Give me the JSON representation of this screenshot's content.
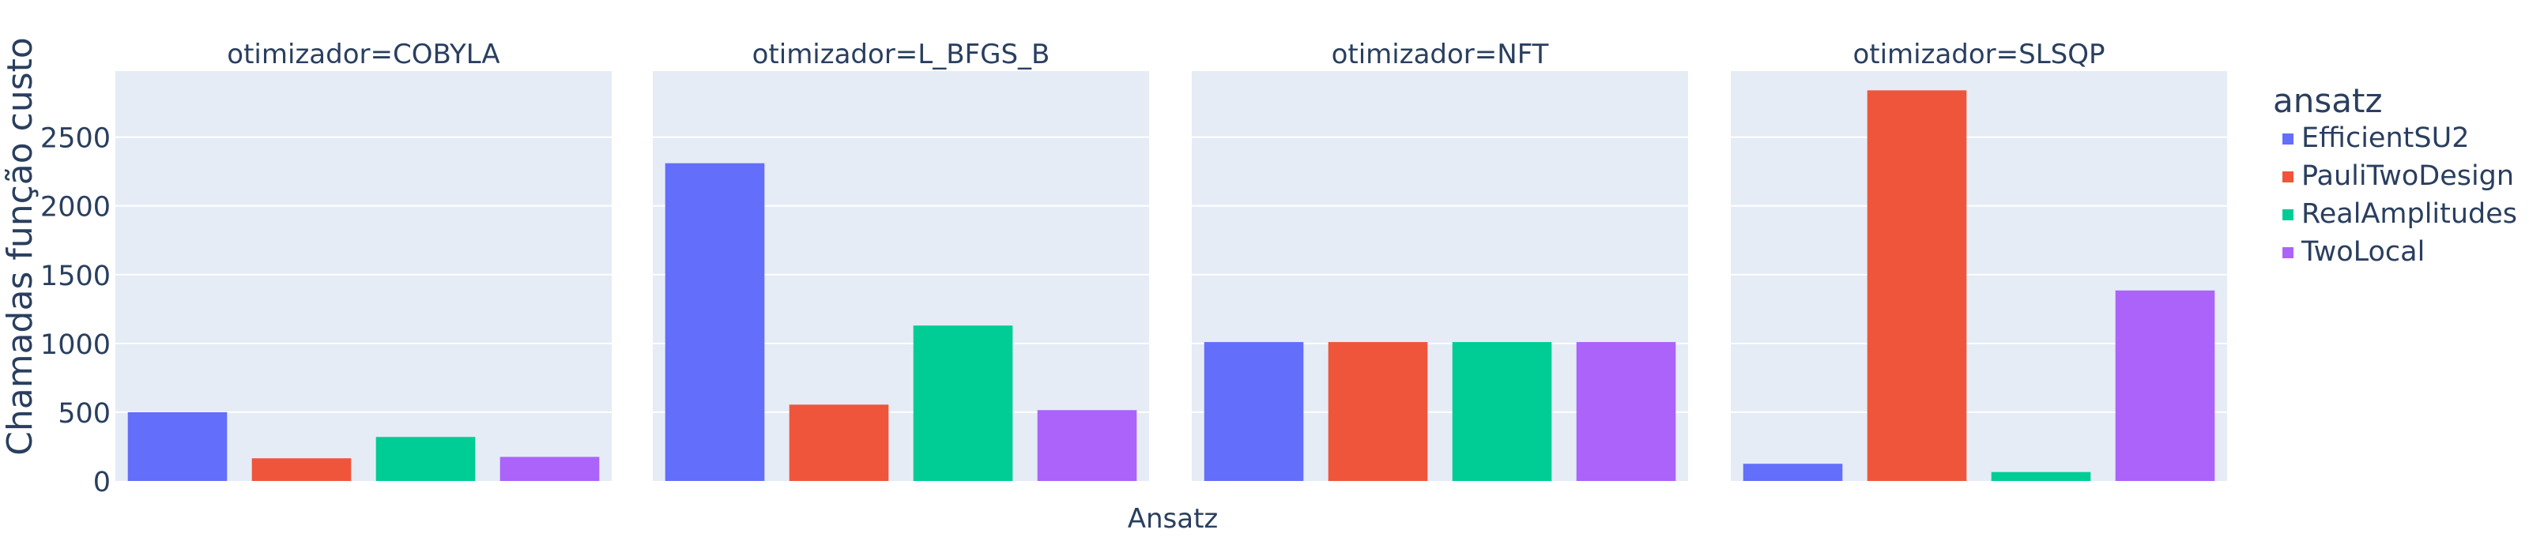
{
  "chart_data": {
    "type": "bar",
    "ylabel": "Chamadas função custo",
    "xlabel": "Ansatz",
    "ylim": [
      0,
      2980
    ],
    "y_ticks": [
      0,
      500,
      1000,
      1500,
      2000,
      2500
    ],
    "y_tick_labels": [
      "0",
      "500",
      "1000",
      "1500",
      "2000",
      "2500"
    ],
    "grid": true,
    "legend": {
      "title": "ansatz",
      "placement": "right"
    },
    "categories": [
      "EfficientSU2",
      "PauliTwoDesign",
      "RealAmplitudes",
      "TwoLocal"
    ],
    "colors": [
      "#636efa",
      "#ef553b",
      "#00cc96",
      "#ab63fa"
    ],
    "plot_background": "#e5ecf6",
    "facets": [
      {
        "title": "otimizador=COBYLA",
        "values": [
          500,
          165,
          320,
          175
        ]
      },
      {
        "title": "otimizador=L_BFGS_B",
        "values": [
          2310,
          555,
          1130,
          515
        ]
      },
      {
        "title": "otimizador=NFT",
        "values": [
          1010,
          1010,
          1010,
          1010
        ]
      },
      {
        "title": "otimizador=SLSQP",
        "values": [
          125,
          2840,
          65,
          1385
        ]
      }
    ]
  }
}
